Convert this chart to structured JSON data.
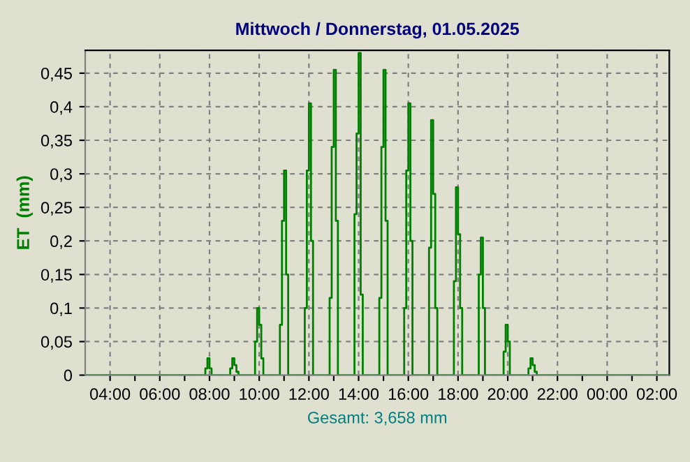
{
  "chart_data": {
    "type": "step",
    "title": "Mittwoch / Donnerstag, 01.05.2025",
    "ylabel": "ET  (mm)",
    "annotations": [
      "Gesamt: 3,658 mm"
    ],
    "series": [
      {
        "color": "#008000",
        "x": [
          "2025-04-30T03:00",
          "2025-04-30T07:50",
          "2025-04-30T07:55",
          "2025-04-30T08:00",
          "2025-04-30T08:05",
          "2025-04-30T08:50",
          "2025-04-30T08:55",
          "2025-04-30T09:00",
          "2025-04-30T09:05",
          "2025-04-30T09:10",
          "2025-04-30T09:50",
          "2025-04-30T09:55",
          "2025-04-30T10:00",
          "2025-04-30T10:05",
          "2025-04-30T10:10",
          "2025-04-30T10:50",
          "2025-04-30T10:55",
          "2025-04-30T11:00",
          "2025-04-30T11:05",
          "2025-04-30T11:10",
          "2025-04-30T11:50",
          "2025-04-30T11:55",
          "2025-04-30T12:00",
          "2025-04-30T12:05",
          "2025-04-30T12:10",
          "2025-04-30T12:50",
          "2025-04-30T12:55",
          "2025-04-30T13:00",
          "2025-04-30T13:05",
          "2025-04-30T13:10",
          "2025-04-30T13:50",
          "2025-04-30T13:55",
          "2025-04-30T14:00",
          "2025-04-30T14:05",
          "2025-04-30T14:10",
          "2025-04-30T14:50",
          "2025-04-30T14:55",
          "2025-04-30T15:00",
          "2025-04-30T15:05",
          "2025-04-30T15:10",
          "2025-04-30T15:50",
          "2025-04-30T15:55",
          "2025-04-30T16:00",
          "2025-04-30T16:05",
          "2025-04-30T16:10",
          "2025-04-30T16:50",
          "2025-04-30T16:55",
          "2025-04-30T17:00",
          "2025-04-30T17:05",
          "2025-04-30T17:10",
          "2025-04-30T17:50",
          "2025-04-30T17:55",
          "2025-04-30T18:00",
          "2025-04-30T18:05",
          "2025-04-30T18:10",
          "2025-04-30T18:50",
          "2025-04-30T18:55",
          "2025-04-30T19:00",
          "2025-04-30T19:05",
          "2025-04-30T19:50",
          "2025-04-30T19:55",
          "2025-04-30T20:00",
          "2025-04-30T20:05",
          "2025-04-30T20:50",
          "2025-04-30T20:55",
          "2025-04-30T21:00",
          "2025-04-30T21:05",
          "2025-04-30T21:10",
          "2025-05-01T02:30"
        ],
        "values": [
          0,
          0.01,
          0.025,
          0.01,
          0,
          0.01,
          0.025,
          0.015,
          0.005,
          0,
          0.05,
          0.1,
          0.075,
          0.025,
          0,
          0.075,
          0.23,
          0.305,
          0.15,
          0,
          0.1,
          0.305,
          0.405,
          0.2,
          0,
          0.115,
          0.34,
          0.455,
          0.23,
          0,
          0.24,
          0.36,
          0.48,
          0.12,
          0,
          0.115,
          0.34,
          0.455,
          0.23,
          0,
          0.1,
          0.305,
          0.405,
          0.2,
          0,
          0.19,
          0.38,
          0.27,
          0.1,
          0,
          0.14,
          0.28,
          0.21,
          0.1,
          0,
          0.15,
          0.205,
          0.1,
          0,
          0.035,
          0.075,
          0.05,
          0,
          0.01,
          0.025,
          0.015,
          0.005,
          0,
          0
        ]
      }
    ],
    "xlim": [
      "2025-04-30T03:00",
      "2025-05-01T02:30"
    ],
    "ylim": [
      0,
      0.484
    ],
    "xticks": [
      {
        "value": "2025-04-30T04:00",
        "label": "04:00"
      },
      {
        "value": "2025-04-30T05:00",
        "label": null
      },
      {
        "value": "2025-04-30T06:00",
        "label": "06:00"
      },
      {
        "value": "2025-04-30T07:00",
        "label": null
      },
      {
        "value": "2025-04-30T08:00",
        "label": "08:00"
      },
      {
        "value": "2025-04-30T09:00",
        "label": null
      },
      {
        "value": "2025-04-30T10:00",
        "label": "10:00"
      },
      {
        "value": "2025-04-30T11:00",
        "label": null
      },
      {
        "value": "2025-04-30T12:00",
        "label": "12:00"
      },
      {
        "value": "2025-04-30T13:00",
        "label": null
      },
      {
        "value": "2025-04-30T14:00",
        "label": "14:00"
      },
      {
        "value": "2025-04-30T15:00",
        "label": null
      },
      {
        "value": "2025-04-30T16:00",
        "label": "16:00"
      },
      {
        "value": "2025-04-30T17:00",
        "label": null
      },
      {
        "value": "2025-04-30T18:00",
        "label": "18:00"
      },
      {
        "value": "2025-04-30T19:00",
        "label": null
      },
      {
        "value": "2025-04-30T20:00",
        "label": "20:00"
      },
      {
        "value": "2025-04-30T21:00",
        "label": null
      },
      {
        "value": "2025-04-30T22:00",
        "label": "22:00"
      },
      {
        "value": "2025-04-30T23:00",
        "label": null
      },
      {
        "value": "2025-05-01T00:00",
        "label": "00:00"
      },
      {
        "value": "2025-05-01T01:00",
        "label": null
      },
      {
        "value": "2025-05-01T02:00",
        "label": "02:00"
      }
    ],
    "yticks": [
      0,
      {
        "value": 0.05,
        "label": "0,05"
      },
      {
        "value": 0.1,
        "label": "0,1"
      },
      {
        "value": 0.15,
        "label": "0,15"
      },
      {
        "value": 0.2,
        "label": "0,2"
      },
      {
        "value": 0.25,
        "label": "0,25"
      },
      {
        "value": 0.3,
        "label": "0,3"
      },
      {
        "value": 0.35,
        "label": "0,35"
      },
      {
        "value": 0.4,
        "label": "0,4"
      },
      {
        "value": 0.45,
        "label": "0,45"
      }
    ],
    "grid": true
  }
}
